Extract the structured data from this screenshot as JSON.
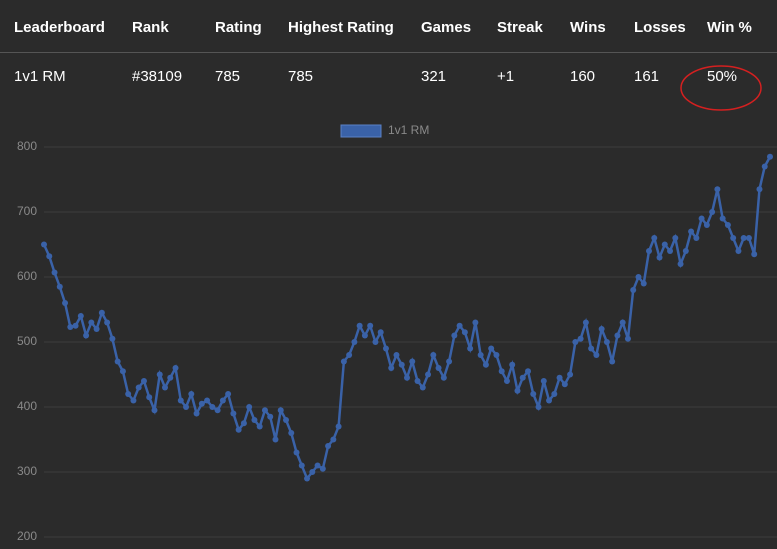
{
  "table": {
    "headers": [
      "Leaderboard",
      "Rank",
      "Rating",
      "Highest Rating",
      "Games",
      "Streak",
      "Wins",
      "Losses",
      "Win %"
    ],
    "rows": [
      [
        "1v1 RM",
        "#38109",
        "785",
        "785",
        "321",
        "+1",
        "160",
        "161",
        "50%"
      ]
    ]
  },
  "chart_data": {
    "type": "line",
    "series": [
      {
        "name": "1v1 RM",
        "color": "#3a62a8",
        "values": [
          650,
          632,
          607,
          585,
          560,
          523,
          525,
          540,
          510,
          530,
          520,
          545,
          530,
          505,
          470,
          455,
          420,
          410,
          430,
          440,
          415,
          395,
          450,
          430,
          445,
          460,
          410,
          400,
          420,
          390,
          405,
          410,
          400,
          395,
          410,
          420,
          390,
          365,
          375,
          400,
          380,
          370,
          395,
          385,
          350,
          395,
          380,
          360,
          330,
          310,
          290,
          300,
          310,
          305,
          340,
          350,
          370,
          470,
          480,
          500,
          525,
          510,
          525,
          500,
          515,
          490,
          460,
          480,
          465,
          445,
          470,
          440,
          430,
          450,
          480,
          460,
          445,
          470,
          510,
          525,
          515,
          490,
          530,
          480,
          465,
          490,
          480,
          455,
          440,
          465,
          425,
          445,
          455,
          420,
          400,
          440,
          410,
          420,
          445,
          435,
          450,
          500,
          505,
          530,
          490,
          480,
          520,
          500,
          470,
          510,
          530,
          505,
          580,
          600,
          590,
          640,
          660,
          630,
          650,
          640,
          660,
          620,
          640,
          670,
          660,
          690,
          680,
          700,
          735,
          690,
          680,
          660,
          640,
          660,
          660,
          635,
          735,
          770,
          785
        ]
      }
    ],
    "ylim": [
      200,
      800
    ],
    "yticks": [
      200,
      300,
      400,
      500,
      600,
      700,
      800
    ],
    "grid": true
  }
}
